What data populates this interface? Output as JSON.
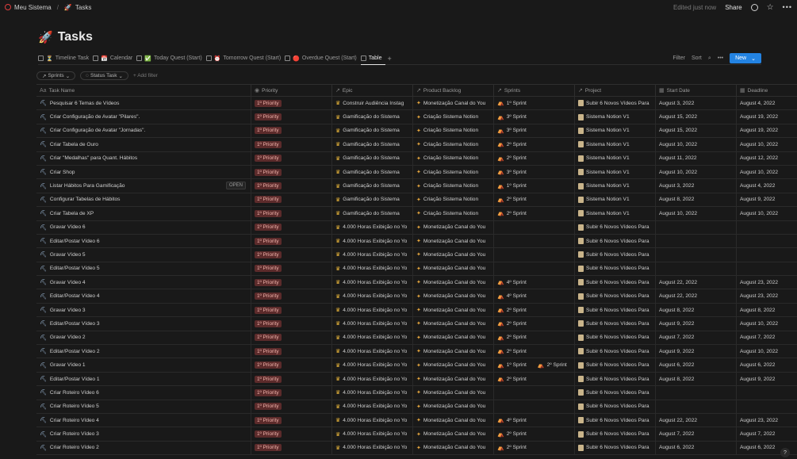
{
  "breadcrumb": {
    "workspace": "Meu Sistema",
    "page": "Tasks",
    "page_icon": "🚀"
  },
  "topbar": {
    "edited": "Edited just now",
    "share": "Share"
  },
  "title": {
    "icon": "🚀",
    "text": "Tasks"
  },
  "views": [
    {
      "icon": "⏳",
      "label": "Timeline Task",
      "active": false
    },
    {
      "icon": "📅",
      "label": "Calendar",
      "active": false
    },
    {
      "icon": "✅",
      "label": "Today Quest (Start)",
      "active": false
    },
    {
      "icon": "⏰",
      "label": "Tomorrow Quest (Start)",
      "active": false
    },
    {
      "icon": "🔴",
      "label": "Overdue Quest (Start)",
      "active": false
    },
    {
      "icon": "",
      "label": "Table",
      "active": true
    }
  ],
  "toolbar": {
    "filter": "Filter",
    "sort": "Sort",
    "new": "New"
  },
  "filters": {
    "sprints": "Sprints",
    "status": "Status Task",
    "add": "+ Add filter"
  },
  "columns": {
    "name": "Task Name",
    "priority": "Priority",
    "epic": "Epic",
    "backlog": "Product Backlog",
    "sprints": "Sprints",
    "project": "Project",
    "start": "Start Date",
    "deadline": "Deadline"
  },
  "open_label": "OPEN",
  "rows": [
    {
      "name": "Pesquisar 6 Temas de Vídeos",
      "priority": "1º Priority",
      "epic": "Construir Audiência Instag",
      "backlog": "Monetização Canal do You",
      "sprints": [
        "1º Sprint"
      ],
      "project": "Subir 6 Novos Vídeos Para",
      "start": "August 3, 2022",
      "deadline": "August 4, 2022"
    },
    {
      "name": "Criar Configuração de Avatar \"Pilares\".",
      "priority": "1º Priority",
      "epic": "Gamificação do Sistema",
      "backlog": "Criação Sistema Notion",
      "sprints": [
        "3º Sprint"
      ],
      "project": "Sistema Notion V1",
      "start": "August 15, 2022",
      "deadline": "August 19, 2022"
    },
    {
      "name": "Criar Configuração de Avatar \"Jornadas\".",
      "priority": "1º Priority",
      "epic": "Gamificação do Sistema",
      "backlog": "Criação Sistema Notion",
      "sprints": [
        "3º Sprint"
      ],
      "project": "Sistema Notion V1",
      "start": "August 15, 2022",
      "deadline": "August 19, 2022"
    },
    {
      "name": "Criar Tabela de Ouro",
      "priority": "1º Priority",
      "epic": "Gamificação do Sistema",
      "backlog": "Criação Sistema Notion",
      "sprints": [
        "2º Sprint"
      ],
      "project": "Sistema Notion V1",
      "start": "August 10, 2022",
      "deadline": "August 10, 2022"
    },
    {
      "name": "Criar \"Medalhas\" para Quant. Hábitos",
      "priority": "1º Priority",
      "epic": "Gamificação do Sistema",
      "backlog": "Criação Sistema Notion",
      "sprints": [
        "2º Sprint"
      ],
      "project": "Sistema Notion V1",
      "start": "August 11, 2022",
      "deadline": "August 12, 2022"
    },
    {
      "name": "Criar Shop",
      "priority": "1º Priority",
      "epic": "Gamificação do Sistema",
      "backlog": "Criação Sistema Notion",
      "sprints": [
        "3º Sprint"
      ],
      "project": "Sistema Notion V1",
      "start": "August 10, 2022",
      "deadline": "August 10, 2022"
    },
    {
      "name": "Listar Hábitos Para Gamificação",
      "priority": "1º Priority",
      "epic": "Gamificação do Sistema",
      "backlog": "Criação Sistema Notion",
      "sprints": [
        "1º Sprint"
      ],
      "project": "Sistema Notion V1",
      "start": "August 3, 2022",
      "deadline": "August 4, 2022",
      "hover": true
    },
    {
      "name": "Configurar Tabelas de Hábitos",
      "priority": "1º Priority",
      "epic": "Gamificação do Sistema",
      "backlog": "Criação Sistema Notion",
      "sprints": [
        "2º Sprint"
      ],
      "project": "Sistema Notion V1",
      "start": "August 8, 2022",
      "deadline": "August 9, 2022"
    },
    {
      "name": "Criar Tabela de XP",
      "priority": "1º Priority",
      "epic": "Gamificação do Sistema",
      "backlog": "Criação Sistema Notion",
      "sprints": [
        "2º Sprint"
      ],
      "project": "Sistema Notion V1",
      "start": "August 10, 2022",
      "deadline": "August 10, 2022"
    },
    {
      "name": "Gravar Vídeo 6",
      "priority": "1º Priority",
      "epic": "4.000 Horas Exibição no Yo",
      "backlog": "Monetização Canal do You",
      "sprints": [],
      "project": "Subir 6 Novos Vídeos Para",
      "start": "",
      "deadline": ""
    },
    {
      "name": "Editar/Postar Vídeo 6",
      "priority": "1º Priority",
      "epic": "4.000 Horas Exibição no Yo",
      "backlog": "Monetização Canal do You",
      "sprints": [],
      "project": "Subir 6 Novos Vídeos Para",
      "start": "",
      "deadline": ""
    },
    {
      "name": "Gravar Vídeo 5",
      "priority": "1º Priority",
      "epic": "4.000 Horas Exibição no Yo",
      "backlog": "Monetização Canal do You",
      "sprints": [],
      "project": "Subir 6 Novos Vídeos Para",
      "start": "",
      "deadline": ""
    },
    {
      "name": "Editar/Postar Vídeo 5",
      "priority": "1º Priority",
      "epic": "4.000 Horas Exibição no Yo",
      "backlog": "Monetização Canal do You",
      "sprints": [],
      "project": "Subir 6 Novos Vídeos Para",
      "start": "",
      "deadline": ""
    },
    {
      "name": "Gravar Vídeo 4",
      "priority": "1º Priority",
      "epic": "4.000 Horas Exibição no Yo",
      "backlog": "Monetização Canal do You",
      "sprints": [
        "4º Sprint"
      ],
      "project": "Subir 6 Novos Vídeos Para",
      "start": "August 22, 2022",
      "deadline": "August 23, 2022"
    },
    {
      "name": "Editar/Postar Vídeo 4",
      "priority": "1º Priority",
      "epic": "4.000 Horas Exibição no Yo",
      "backlog": "Monetização Canal do You",
      "sprints": [
        "4º Sprint"
      ],
      "project": "Subir 6 Novos Vídeos Para",
      "start": "August 22, 2022",
      "deadline": "August 23, 2022"
    },
    {
      "name": "Gravar Vídeo 3",
      "priority": "1º Priority",
      "epic": "4.000 Horas Exibição no Yo",
      "backlog": "Monetização Canal do You",
      "sprints": [
        "2º Sprint"
      ],
      "project": "Subir 6 Novos Vídeos Para",
      "start": "August 8, 2022",
      "deadline": "August 8, 2022"
    },
    {
      "name": "Editar/Postar Vídeo 3",
      "priority": "1º Priority",
      "epic": "4.000 Horas Exibição no Yo",
      "backlog": "Monetização Canal do You",
      "sprints": [
        "2º Sprint"
      ],
      "project": "Subir 6 Novos Vídeos Para",
      "start": "August 9, 2022",
      "deadline": "August 10, 2022"
    },
    {
      "name": "Gravar Vídeo 2",
      "priority": "1º Priority",
      "epic": "4.000 Horas Exibição no Yo",
      "backlog": "Monetização Canal do You",
      "sprints": [
        "2º Sprint"
      ],
      "project": "Subir 6 Novos Vídeos Para",
      "start": "August 7, 2022",
      "deadline": "August 7, 2022"
    },
    {
      "name": "Editar/Postar Vídeo 2",
      "priority": "1º Priority",
      "epic": "4.000 Horas Exibição no Yo",
      "backlog": "Monetização Canal do You",
      "sprints": [
        "2º Sprint"
      ],
      "project": "Subir 6 Novos Vídeos Para",
      "start": "August 9, 2022",
      "deadline": "August 10, 2022"
    },
    {
      "name": "Gravar Vídeo 1",
      "priority": "1º Priority",
      "epic": "4.000 Horas Exibição no Yo",
      "backlog": "Monetização Canal do You",
      "sprints": [
        "1º Sprint",
        "2º Sprint"
      ],
      "project": "Subir 6 Novos Vídeos Para",
      "start": "August 6, 2022",
      "deadline": "August 6, 2022"
    },
    {
      "name": "Editar/Postar Vídeo 1",
      "priority": "1º Priority",
      "epic": "4.000 Horas Exibição no Yo",
      "backlog": "Monetização Canal do You",
      "sprints": [
        "2º Sprint"
      ],
      "project": "Subir 6 Novos Vídeos Para",
      "start": "August 8, 2022",
      "deadline": "August 9, 2022"
    },
    {
      "name": "Criar Roteiro Vídeo 6",
      "priority": "1º Priority",
      "epic": "4.000 Horas Exibição no Yo",
      "backlog": "Monetização Canal do You",
      "sprints": [],
      "project": "Subir 6 Novos Vídeos Para",
      "start": "",
      "deadline": ""
    },
    {
      "name": "Criar Roteiro Vídeo 5",
      "priority": "1º Priority",
      "epic": "4.000 Horas Exibição no Yo",
      "backlog": "Monetização Canal do You",
      "sprints": [],
      "project": "Subir 6 Novos Vídeos Para",
      "start": "",
      "deadline": ""
    },
    {
      "name": "Criar Roteiro Vídeo 4",
      "priority": "1º Priority",
      "epic": "4.000 Horas Exibição no Yo",
      "backlog": "Monetização Canal do You",
      "sprints": [
        "4º Sprint"
      ],
      "project": "Subir 6 Novos Vídeos Para",
      "start": "August 22, 2022",
      "deadline": "August 23, 2022"
    },
    {
      "name": "Criar Roteiro Vídeo 3",
      "priority": "1º Priority",
      "epic": "4.000 Horas Exibição no Yo",
      "backlog": "Monetização Canal do You",
      "sprints": [
        "2º Sprint"
      ],
      "project": "Subir 6 Novos Vídeos Para",
      "start": "August 7, 2022",
      "deadline": "August 7, 2022"
    },
    {
      "name": "Criar Roteiro Vídeo 2",
      "priority": "1º Priority",
      "epic": "4.000 Horas Exibição no Yo",
      "backlog": "Monetização Canal do You",
      "sprints": [
        "2º Sprint"
      ],
      "project": "Subir 6 Novos Vídeos Para",
      "start": "August 6, 2022",
      "deadline": "August 6, 2022"
    }
  ],
  "help": "?"
}
